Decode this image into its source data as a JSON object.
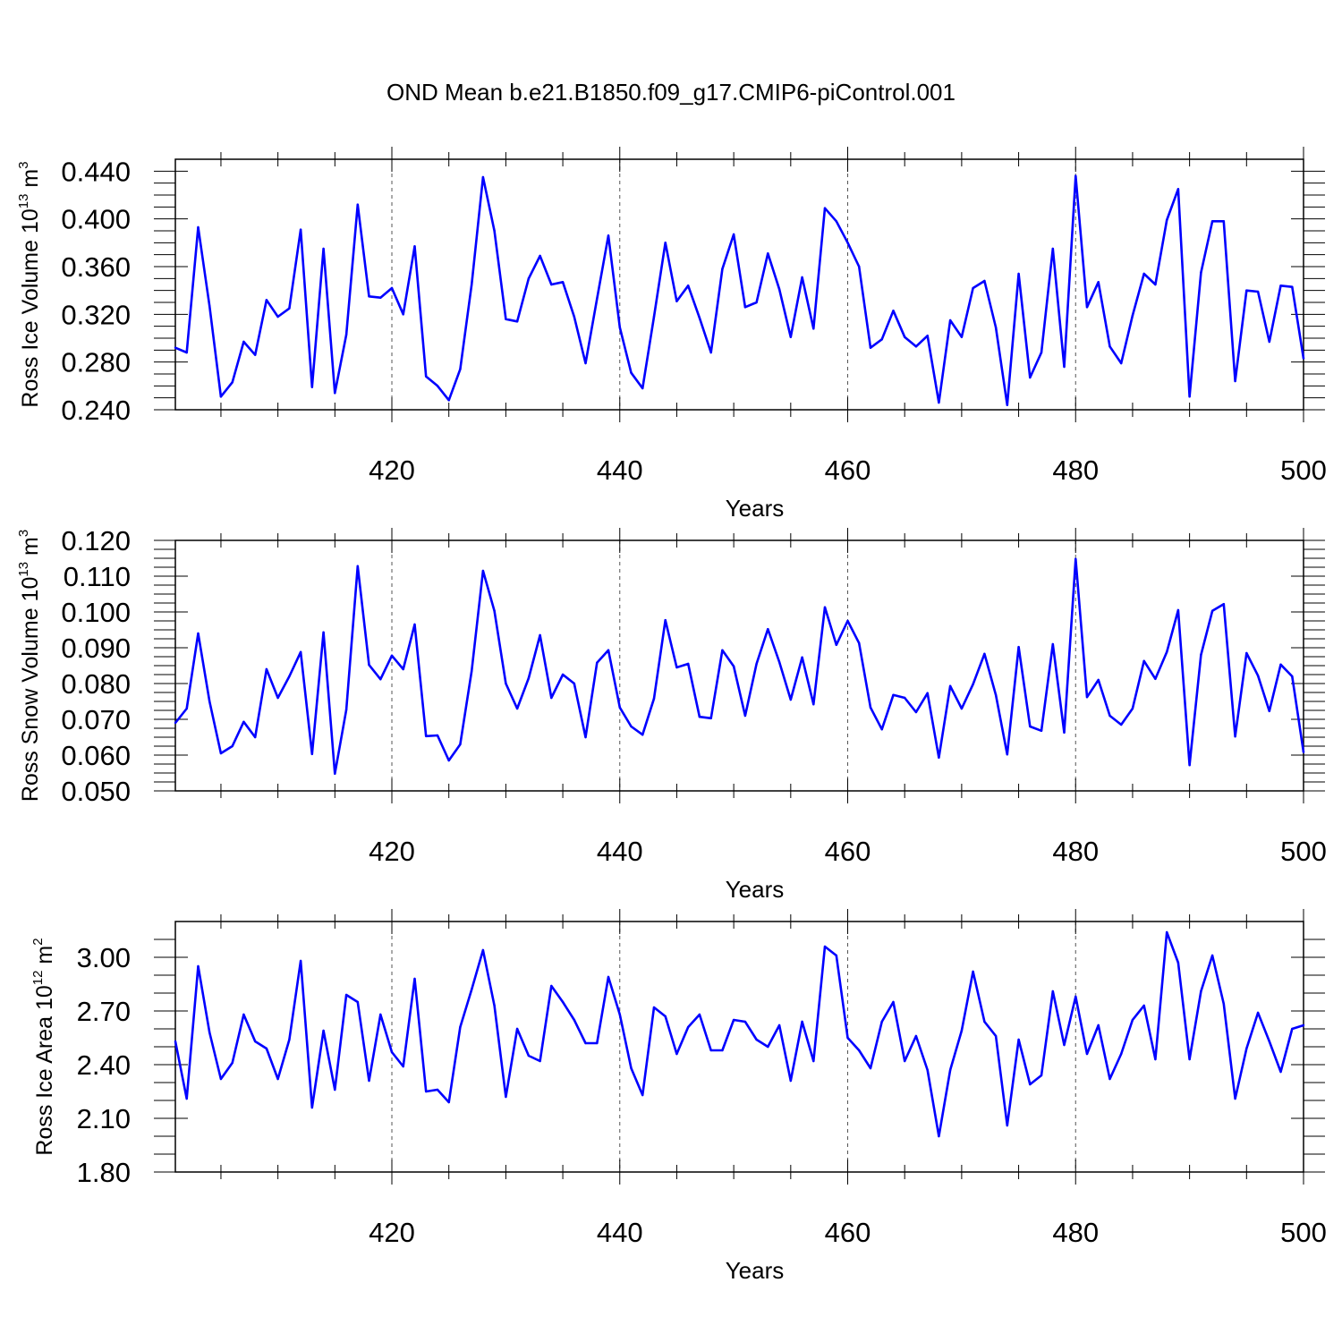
{
  "chart_data": {
    "title": "OND Mean b.e21.B1850.f09_g17.CMIP6-piControl.001",
    "panels": [
      {
        "type": "line",
        "ylabel": "Ross Ice Volume",
        "yunit_base": "10",
        "yunit_exp": "13",
        "yunit_sym": "m",
        "yunit_sym_exp": "3",
        "xlabel": "Years",
        "xlim": [
          401,
          500
        ],
        "ylim": [
          0.24,
          0.45
        ],
        "yticks": [
          0.24,
          0.28,
          0.32,
          0.36,
          0.4,
          0.44
        ],
        "ytick_labels": [
          "0.240",
          "0.280",
          "0.320",
          "0.360",
          "0.400",
          "0.440"
        ],
        "yminor_step": 0.01,
        "xticks": [
          420,
          440,
          460,
          480,
          500
        ],
        "xtick_labels": [
          "420",
          "440",
          "460",
          "480",
          "500"
        ],
        "line_color": "#0000ff",
        "x": [
          401,
          402,
          403,
          404,
          405,
          406,
          407,
          408,
          409,
          410,
          411,
          412,
          413,
          414,
          415,
          416,
          417,
          418,
          419,
          420,
          421,
          422,
          423,
          424,
          425,
          426,
          427,
          428,
          429,
          430,
          431,
          432,
          433,
          434,
          435,
          436,
          437,
          438,
          439,
          440,
          441,
          442,
          443,
          444,
          445,
          446,
          447,
          448,
          449,
          450,
          451,
          452,
          453,
          454,
          455,
          456,
          457,
          458,
          459,
          460,
          461,
          462,
          463,
          464,
          465,
          466,
          467,
          468,
          469,
          470,
          471,
          472,
          473,
          474,
          475,
          476,
          477,
          478,
          479,
          480,
          481,
          482,
          483,
          484,
          485,
          486,
          487,
          488,
          489,
          490,
          491,
          492,
          493,
          494,
          495,
          496,
          497,
          498,
          499,
          500
        ],
        "values": [
          0.292,
          0.288,
          0.393,
          0.327,
          0.251,
          0.263,
          0.297,
          0.286,
          0.332,
          0.318,
          0.325,
          0.391,
          0.259,
          0.375,
          0.254,
          0.303,
          0.412,
          0.335,
          0.334,
          0.342,
          0.32,
          0.377,
          0.268,
          0.26,
          0.248,
          0.274,
          0.345,
          0.435,
          0.39,
          0.316,
          0.314,
          0.35,
          0.369,
          0.345,
          0.347,
          0.318,
          0.279,
          0.333,
          0.386,
          0.309,
          0.271,
          0.258,
          0.318,
          0.38,
          0.331,
          0.344,
          0.317,
          0.288,
          0.358,
          0.387,
          0.326,
          0.33,
          0.371,
          0.341,
          0.301,
          0.351,
          0.308,
          0.409,
          0.398,
          0.38,
          0.36,
          0.292,
          0.299,
          0.323,
          0.301,
          0.293,
          0.302,
          0.246,
          0.315,
          0.301,
          0.342,
          0.348,
          0.309,
          0.244,
          0.354,
          0.267,
          0.288,
          0.375,
          0.276,
          0.436,
          0.326,
          0.347,
          0.293,
          0.279,
          0.319,
          0.354,
          0.345,
          0.399,
          0.425,
          0.251,
          0.355,
          0.398,
          0.398,
          0.264,
          0.34,
          0.339,
          0.297,
          0.344,
          0.343,
          0.283
        ]
      },
      {
        "type": "line",
        "ylabel": "Ross Snow Volume",
        "yunit_base": "10",
        "yunit_exp": "13",
        "yunit_sym": "m",
        "yunit_sym_exp": "3",
        "xlabel": "Years",
        "xlim": [
          401,
          500
        ],
        "ylim": [
          0.05,
          0.12
        ],
        "yticks": [
          0.05,
          0.06,
          0.07,
          0.08,
          0.09,
          0.1,
          0.11,
          0.12
        ],
        "ytick_labels": [
          "0.050",
          "0.060",
          "0.070",
          "0.080",
          "0.090",
          "0.100",
          "0.110",
          "0.120"
        ],
        "yminor_step": 0.0025,
        "xticks": [
          420,
          440,
          460,
          480,
          500
        ],
        "xtick_labels": [
          "420",
          "440",
          "460",
          "480",
          "500"
        ],
        "line_color": "#0000ff",
        "x": [
          401,
          402,
          403,
          404,
          405,
          406,
          407,
          408,
          409,
          410,
          411,
          412,
          413,
          414,
          415,
          416,
          417,
          418,
          419,
          420,
          421,
          422,
          423,
          424,
          425,
          426,
          427,
          428,
          429,
          430,
          431,
          432,
          433,
          434,
          435,
          436,
          437,
          438,
          439,
          440,
          441,
          442,
          443,
          444,
          445,
          446,
          447,
          448,
          449,
          450,
          451,
          452,
          453,
          454,
          455,
          456,
          457,
          458,
          459,
          460,
          461,
          462,
          463,
          464,
          465,
          466,
          467,
          468,
          469,
          470,
          471,
          472,
          473,
          474,
          475,
          476,
          477,
          478,
          479,
          480,
          481,
          482,
          483,
          484,
          485,
          486,
          487,
          488,
          489,
          490,
          491,
          492,
          493,
          494,
          495,
          496,
          497,
          498,
          499,
          500
        ],
        "values": [
          0.069,
          0.073,
          0.094,
          0.075,
          0.0605,
          0.0625,
          0.0693,
          0.065,
          0.084,
          0.076,
          0.082,
          0.0888,
          0.0603,
          0.0943,
          0.0548,
          0.0727,
          0.1128,
          0.0852,
          0.0812,
          0.0878,
          0.084,
          0.0965,
          0.0653,
          0.0655,
          0.0585,
          0.063,
          0.0835,
          0.1115,
          0.1003,
          0.08,
          0.073,
          0.0815,
          0.0935,
          0.076,
          0.0825,
          0.08,
          0.065,
          0.0858,
          0.0893,
          0.0733,
          0.068,
          0.0657,
          0.0758,
          0.0977,
          0.0845,
          0.0855,
          0.0707,
          0.0703,
          0.0893,
          0.0848,
          0.071,
          0.0855,
          0.0952,
          0.086,
          0.0755,
          0.0873,
          0.0742,
          0.1013,
          0.0908,
          0.0975,
          0.0913,
          0.0733,
          0.0672,
          0.0768,
          0.076,
          0.072,
          0.0773,
          0.0593,
          0.0793,
          0.073,
          0.0798,
          0.0883,
          0.0768,
          0.0602,
          0.0902,
          0.068,
          0.0668,
          0.091,
          0.0663,
          0.1148,
          0.0762,
          0.081,
          0.071,
          0.0685,
          0.073,
          0.0863,
          0.0813,
          0.0888,
          0.1005,
          0.0572,
          0.088,
          0.1003,
          0.1022,
          0.0652,
          0.0885,
          0.0822,
          0.0723,
          0.0853,
          0.082,
          0.0608
        ]
      },
      {
        "type": "line",
        "ylabel": "Ross Ice Area",
        "yunit_base": "10",
        "yunit_exp": "12",
        "yunit_sym": "m",
        "yunit_sym_exp": "2",
        "xlabel": "Years",
        "xlim": [
          401,
          500
        ],
        "ylim": [
          1.8,
          3.2
        ],
        "yticks": [
          1.8,
          2.1,
          2.4,
          2.7,
          3.0
        ],
        "ytick_labels": [
          "1.80",
          "2.10",
          "2.40",
          "2.70",
          "3.00"
        ],
        "yminor_step": 0.1,
        "xticks": [
          420,
          440,
          460,
          480,
          500
        ],
        "xtick_labels": [
          "420",
          "440",
          "460",
          "480",
          "500"
        ],
        "line_color": "#0000ff",
        "x": [
          401,
          402,
          403,
          404,
          405,
          406,
          407,
          408,
          409,
          410,
          411,
          412,
          413,
          414,
          415,
          416,
          417,
          418,
          419,
          420,
          421,
          422,
          423,
          424,
          425,
          426,
          427,
          428,
          429,
          430,
          431,
          432,
          433,
          434,
          435,
          436,
          437,
          438,
          439,
          440,
          441,
          442,
          443,
          444,
          445,
          446,
          447,
          448,
          449,
          450,
          451,
          452,
          453,
          454,
          455,
          456,
          457,
          458,
          459,
          460,
          461,
          462,
          463,
          464,
          465,
          466,
          467,
          468,
          469,
          470,
          471,
          472,
          473,
          474,
          475,
          476,
          477,
          478,
          479,
          480,
          481,
          482,
          483,
          484,
          485,
          486,
          487,
          488,
          489,
          490,
          491,
          492,
          493,
          494,
          495,
          496,
          497,
          498,
          499,
          500
        ],
        "values": [
          2.53,
          2.21,
          2.95,
          2.58,
          2.32,
          2.41,
          2.68,
          2.53,
          2.49,
          2.32,
          2.54,
          2.98,
          2.16,
          2.59,
          2.26,
          2.79,
          2.75,
          2.31,
          2.68,
          2.47,
          2.39,
          2.88,
          2.25,
          2.26,
          2.19,
          2.61,
          2.82,
          3.04,
          2.73,
          2.22,
          2.6,
          2.45,
          2.42,
          2.84,
          2.75,
          2.65,
          2.52,
          2.52,
          2.89,
          2.68,
          2.38,
          2.23,
          2.72,
          2.67,
          2.46,
          2.61,
          2.68,
          2.48,
          2.48,
          2.65,
          2.64,
          2.54,
          2.5,
          2.62,
          2.31,
          2.64,
          2.42,
          3.06,
          3.01,
          2.55,
          2.48,
          2.38,
          2.64,
          2.75,
          2.42,
          2.56,
          2.37,
          2.0,
          2.37,
          2.59,
          2.92,
          2.64,
          2.56,
          2.06,
          2.54,
          2.29,
          2.34,
          2.81,
          2.51,
          2.78,
          2.46,
          2.62,
          2.32,
          2.46,
          2.65,
          2.73,
          2.43,
          3.14,
          2.97,
          2.43,
          2.81,
          3.01,
          2.74,
          2.21,
          2.49,
          2.69,
          2.53,
          2.36,
          2.6,
          2.62
        ]
      }
    ]
  }
}
